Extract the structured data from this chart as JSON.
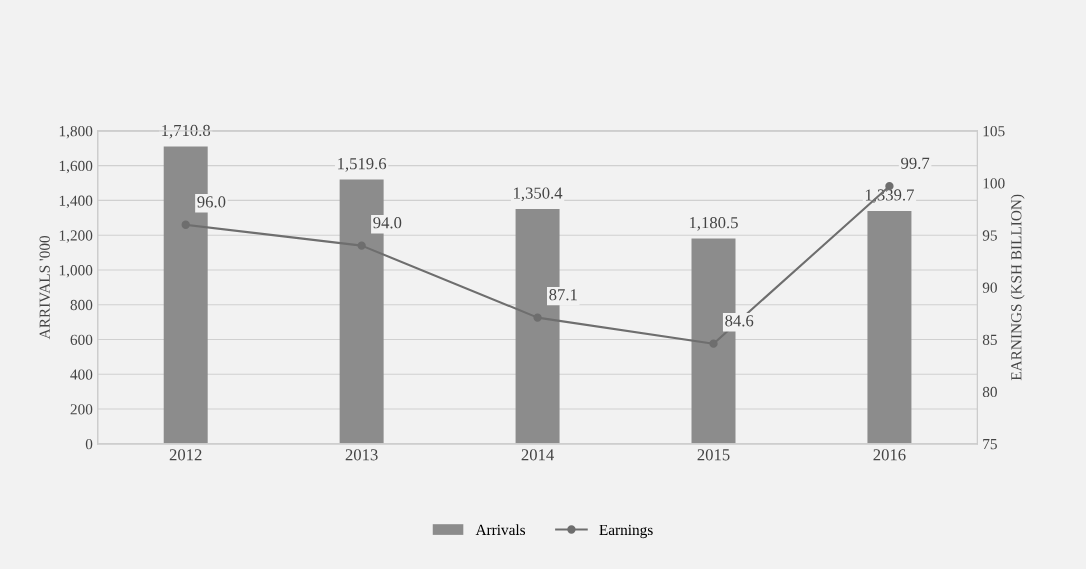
{
  "chart_data": {
    "type": "bar",
    "categories": [
      "2012",
      "2013",
      "2014",
      "2015",
      "2016"
    ],
    "ylabel": "ARRIVALS '000",
    "y2label": "EARNINGS (KSH BILLION)",
    "series": [
      {
        "name": "Arrivals",
        "color": "#8c8c8c",
        "values": [
          1710.8,
          1519.6,
          1350.4,
          1180.5,
          1339.7
        ],
        "value_labels": [
          "1,710.8",
          "1,519.6",
          "1,350.4",
          "1,180.5",
          "1,339.7"
        ]
      },
      {
        "name": "Earnings",
        "type": "line",
        "axis": "y2",
        "color": "#6e6e6e",
        "values": [
          96.0,
          94.0,
          87.1,
          84.6,
          99.7
        ],
        "value_labels": [
          "96.0",
          "94.0",
          "87.1",
          "84.6",
          "99.7"
        ]
      }
    ],
    "ylim": [
      0,
      1800
    ],
    "yticks": [
      0,
      {
        "value": 200,
        "label": "200"
      },
      {
        "value": 400,
        "label": "400"
      },
      {
        "value": 600,
        "label": "600"
      },
      {
        "value": 800,
        "label": "800"
      },
      {
        "value": 1000,
        "label": "1,000"
      },
      {
        "value": 1200,
        "label": "1,200"
      },
      {
        "value": 1400,
        "label": "1,400"
      },
      {
        "value": 1600,
        "label": "1,600"
      },
      {
        "value": 1800,
        "label": "1,800"
      }
    ],
    "y2lim": [
      75,
      105
    ],
    "y2ticks": [
      75,
      80,
      85,
      90,
      95,
      100,
      105
    ],
    "grid": "y",
    "legend": "bottom",
    "marker": "circle",
    "line_style": "solid"
  }
}
